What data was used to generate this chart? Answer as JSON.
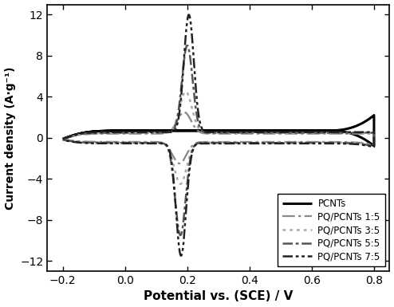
{
  "xlim": [
    -0.25,
    0.85
  ],
  "ylim": [
    -13,
    13
  ],
  "xticks": [
    -0.2,
    0.0,
    0.2,
    0.4,
    0.6,
    0.8
  ],
  "yticks": [
    -12,
    -8,
    -4,
    0,
    4,
    8,
    12
  ],
  "xlabel": "Potential vs. (SCE) / V",
  "ylabel": "Current density (A·g⁻¹)",
  "background_color": "#ffffff",
  "series": [
    {
      "label": "PCNTs",
      "color": "#000000",
      "linestyle": "solid",
      "linewidth": 2.2
    },
    {
      "label": "PQ/PCNTs 1:5",
      "color": "#888888",
      "linestyle": "dashdot_loose",
      "linewidth": 1.6
    },
    {
      "label": "PQ/PCNTs 3:5",
      "color": "#aaaaaa",
      "linestyle": "dotted",
      "linewidth": 1.8
    },
    {
      "label": "PQ/PCNTs 5:5",
      "color": "#555555",
      "linestyle": "dashdot",
      "linewidth": 1.8
    },
    {
      "label": "PQ/PCNTs 7:5",
      "color": "#222222",
      "linestyle": "dashdotdot",
      "linewidth": 1.8
    }
  ]
}
